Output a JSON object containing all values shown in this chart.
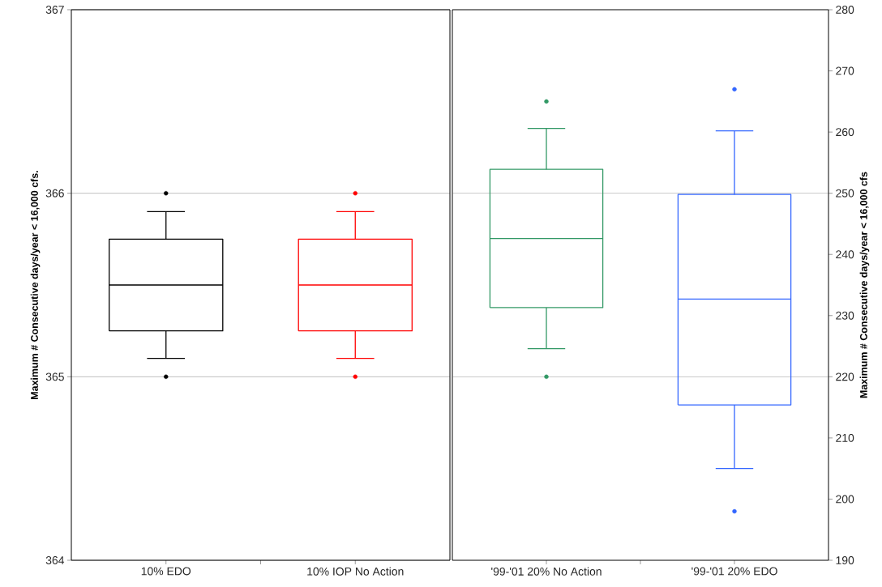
{
  "chart_data": [
    {
      "type": "box",
      "categories": [
        "10% EDO",
        "10% IOP No Action"
      ],
      "ylabel": "Maximum # Consecutive days/year < 16,000 cfs.",
      "ylim": [
        364,
        367
      ],
      "yticks": [
        364,
        365,
        366,
        367
      ],
      "grid": "y",
      "series": [
        {
          "colors": [
            "#000000",
            "#ff0000"
          ],
          "boxes": [
            {
              "low": 365.1,
              "q1": 365.25,
              "median": 365.5,
              "q3": 365.75,
              "high": 365.9,
              "outliers": [
                365,
                366
              ]
            },
            {
              "low": 365.1,
              "q1": 365.25,
              "median": 365.5,
              "q3": 365.75,
              "high": 365.9,
              "outliers": [
                365,
                366
              ]
            }
          ]
        }
      ]
    },
    {
      "type": "box",
      "categories": [
        "'99-'01 20% No Action",
        "'99-'01 20% EDO"
      ],
      "y2label": "Maximum # Consecutive days/year < 16,000 cfs",
      "y2lim": [
        190,
        280
      ],
      "y2ticks": [
        190,
        200,
        210,
        220,
        230,
        240,
        250,
        260,
        270,
        280
      ],
      "ref_lines": [
        {
          "axis": "y2",
          "value": 250,
          "color": "#606060"
        },
        {
          "axis": "y2",
          "value": 220,
          "color": "#606060"
        }
      ],
      "series": [
        {
          "axis": "y2",
          "colors": [
            "#339966",
            "#3366ff"
          ],
          "boxes": [
            {
              "low": 224.6,
              "q1": 231.3,
              "median": 242.6,
              "q3": 253.9,
              "high": 260.6,
              "outliers": [
                220,
                265
              ]
            },
            {
              "low": 205,
              "q1": 215.4,
              "median": 232.7,
              "q3": 249.8,
              "high": 260.2,
              "outliers": [
                198,
                267
              ]
            }
          ]
        }
      ]
    }
  ]
}
